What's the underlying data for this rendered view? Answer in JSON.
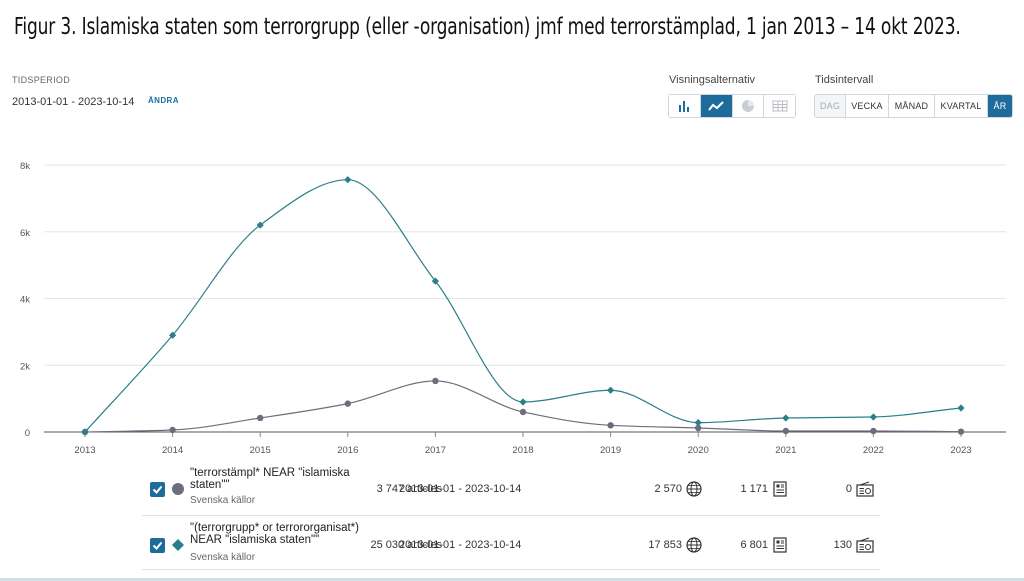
{
  "figure_title": "Figur 3. Islamiska staten som terrorgrupp (eller -organisation) jmf med terrorstämplad, 1 jan 2013 – 14 okt 2023.",
  "period": {
    "label": "TIDSPERIOD",
    "value": "2013-01-01 - 2023-10-14",
    "change": "ÄNDRA"
  },
  "view_options": {
    "label": "Visningsalternativ",
    "active": "line",
    "icons": [
      "bar-chart-icon",
      "line-chart-icon",
      "pie-chart-icon",
      "table-icon"
    ]
  },
  "time_interval": {
    "label": "Tidsintervall",
    "options": [
      "DAG",
      "VECKA",
      "MÅNAD",
      "KVARTAL",
      "ÅR"
    ],
    "disabled": "DAG",
    "active": "ÅR"
  },
  "colors": {
    "accent": "#1d6c9c",
    "series1": "#6c6e7e",
    "series2": "#2a7f88",
    "grid": "#e6e6e6"
  },
  "chart_data": {
    "type": "line",
    "x": [
      "2013",
      "2014",
      "2015",
      "2016",
      "2017",
      "2018",
      "2019",
      "2020",
      "2021",
      "2022",
      "2023"
    ],
    "ylim": [
      0,
      8000
    ],
    "yticks": [
      0,
      2000,
      4000,
      6000,
      8000
    ],
    "ytick_labels": [
      "0",
      "2k",
      "4k",
      "6k",
      "8k"
    ],
    "grid": true,
    "series": [
      {
        "marker": "circle",
        "color": "#6c6e7e",
        "values": [
          0,
          60,
          420,
          850,
          1530,
          600,
          200,
          120,
          30,
          30,
          10
        ]
      },
      {
        "marker": "diamond",
        "color": "#2a7f88",
        "values": [
          0,
          2900,
          6200,
          7560,
          4520,
          900,
          1250,
          280,
          420,
          450,
          720
        ]
      }
    ]
  },
  "legend_rows": [
    {
      "query": "\"terrorstämpl* NEAR \"islamiska staten\"\"",
      "source": "Svenska källor",
      "dates": "2013-01-01 - 2023-10-14",
      "articles": "3 747 articles",
      "web": "2 570",
      "print": "1 171",
      "broadcast": "0"
    },
    {
      "query": "\"(terrorgrupp* or terrororganisat*) NEAR \"islamiska staten\"\"",
      "source": "Svenska källor",
      "dates": "2013-01-01 - 2023-10-14",
      "articles": "25 030 articles",
      "web": "17 853",
      "print": "6 801",
      "broadcast": "130"
    }
  ]
}
